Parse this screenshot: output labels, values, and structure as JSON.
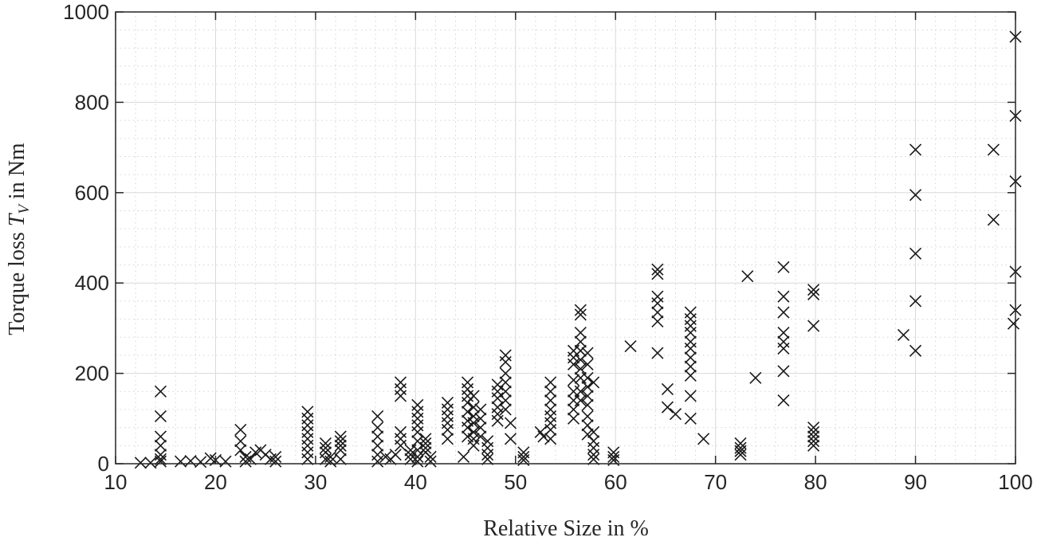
{
  "chart_data": {
    "type": "scatter",
    "title": "",
    "xlabel": "Relative Size in %",
    "ylabel_prefix": "Torque loss ",
    "ylabel_var": "T",
    "ylabel_sub": "V",
    "ylabel_suffix": " in Nm",
    "xlim": [
      10,
      100
    ],
    "ylim": [
      0,
      1000
    ],
    "xticks": [
      10,
      20,
      30,
      40,
      50,
      60,
      70,
      80,
      90,
      100
    ],
    "yticks": [
      0,
      200,
      400,
      600,
      800,
      1000
    ],
    "grid": "major and minor",
    "marker": "x",
    "marker_color": "#1a1a1a",
    "series": [
      {
        "points": [
          [
            12.5,
            2
          ],
          [
            13.5,
            2
          ],
          [
            16.5,
            5
          ],
          [
            17.5,
            6
          ],
          [
            18.5,
            4
          ],
          [
            19.5,
            12
          ],
          [
            20,
            8
          ],
          [
            21,
            5
          ],
          [
            14.5,
            160
          ],
          [
            14.5,
            105
          ],
          [
            14.5,
            60
          ],
          [
            14.5,
            40
          ],
          [
            14.5,
            20
          ],
          [
            14.5,
            10
          ],
          [
            14.5,
            5
          ],
          [
            22.5,
            75
          ],
          [
            22.5,
            50
          ],
          [
            22.5,
            30
          ],
          [
            23,
            15
          ],
          [
            23,
            5
          ],
          [
            23.5,
            10
          ],
          [
            24,
            25
          ],
          [
            24.5,
            30
          ],
          [
            25,
            20
          ],
          [
            25.5,
            10
          ],
          [
            26,
            15
          ],
          [
            26,
            5
          ],
          [
            29.2,
            115
          ],
          [
            29.2,
            100
          ],
          [
            29.2,
            85
          ],
          [
            29.2,
            70
          ],
          [
            29.2,
            55
          ],
          [
            29.2,
            40
          ],
          [
            29.2,
            25
          ],
          [
            29.2,
            10
          ],
          [
            31,
            10
          ],
          [
            31,
            25
          ],
          [
            31,
            35
          ],
          [
            31,
            45
          ],
          [
            31.5,
            15
          ],
          [
            31.5,
            5
          ],
          [
            32.5,
            60
          ],
          [
            32.5,
            50
          ],
          [
            32.5,
            40
          ],
          [
            32.5,
            30
          ],
          [
            32.5,
            10
          ],
          [
            36.2,
            105
          ],
          [
            36.2,
            80
          ],
          [
            36.2,
            60
          ],
          [
            36.2,
            40
          ],
          [
            36.2,
            20
          ],
          [
            36.2,
            5
          ],
          [
            37,
            15
          ],
          [
            37.5,
            10
          ],
          [
            38,
            20
          ],
          [
            38.5,
            180
          ],
          [
            38.5,
            165
          ],
          [
            38.5,
            150
          ],
          [
            38.5,
            70
          ],
          [
            38.5,
            55
          ],
          [
            38.5,
            40
          ],
          [
            39.5,
            30
          ],
          [
            39.5,
            20
          ],
          [
            39.5,
            10
          ],
          [
            40.2,
            130
          ],
          [
            40.2,
            115
          ],
          [
            40.2,
            100
          ],
          [
            40.2,
            85
          ],
          [
            40.2,
            70
          ],
          [
            40.2,
            50
          ],
          [
            40.2,
            30
          ],
          [
            40.2,
            15
          ],
          [
            40.2,
            5
          ],
          [
            41,
            55
          ],
          [
            41,
            45
          ],
          [
            41,
            35
          ],
          [
            41,
            25
          ],
          [
            41.5,
            15
          ],
          [
            41.5,
            5
          ],
          [
            43.2,
            135
          ],
          [
            43.2,
            120
          ],
          [
            43.2,
            105
          ],
          [
            43.2,
            90
          ],
          [
            43.2,
            75
          ],
          [
            43.2,
            55
          ],
          [
            44.8,
            15
          ],
          [
            45.2,
            180
          ],
          [
            45.2,
            165
          ],
          [
            45.2,
            150
          ],
          [
            45.2,
            135
          ],
          [
            45.2,
            115
          ],
          [
            45.2,
            95
          ],
          [
            45.2,
            80
          ],
          [
            45.2,
            60
          ],
          [
            45.8,
            150
          ],
          [
            45.8,
            125
          ],
          [
            45.8,
            105
          ],
          [
            45.8,
            90
          ],
          [
            45.8,
            70
          ],
          [
            45.8,
            55
          ],
          [
            45.8,
            40
          ],
          [
            46.5,
            120
          ],
          [
            46.5,
            100
          ],
          [
            46.5,
            80
          ],
          [
            46.5,
            60
          ],
          [
            47.2,
            50
          ],
          [
            47.2,
            35
          ],
          [
            47.2,
            20
          ],
          [
            47.2,
            10
          ],
          [
            48.2,
            175
          ],
          [
            48.2,
            160
          ],
          [
            48.2,
            145
          ],
          [
            48.2,
            125
          ],
          [
            48.2,
            110
          ],
          [
            48.2,
            95
          ],
          [
            49,
            240
          ],
          [
            49,
            225
          ],
          [
            49,
            200
          ],
          [
            49,
            180
          ],
          [
            49,
            160
          ],
          [
            49,
            140
          ],
          [
            49,
            120
          ],
          [
            49.5,
            90
          ],
          [
            49.5,
            55
          ],
          [
            50.8,
            25
          ],
          [
            50.8,
            15
          ],
          [
            50.8,
            8
          ],
          [
            52.5,
            70
          ],
          [
            52.8,
            60
          ],
          [
            53.5,
            180
          ],
          [
            53.5,
            160
          ],
          [
            53.5,
            140
          ],
          [
            53.5,
            120
          ],
          [
            53.5,
            105
          ],
          [
            53.5,
            90
          ],
          [
            53.5,
            75
          ],
          [
            53.5,
            55
          ],
          [
            55.8,
            250
          ],
          [
            55.8,
            235
          ],
          [
            55.8,
            220
          ],
          [
            55.8,
            185
          ],
          [
            55.8,
            160
          ],
          [
            55.8,
            140
          ],
          [
            55.8,
            120
          ],
          [
            55.8,
            100
          ],
          [
            56.5,
            340
          ],
          [
            56.5,
            330
          ],
          [
            56.5,
            290
          ],
          [
            56.5,
            270
          ],
          [
            56.5,
            250
          ],
          [
            56.5,
            230
          ],
          [
            56.5,
            210
          ],
          [
            56.5,
            190
          ],
          [
            56.5,
            160
          ],
          [
            56.5,
            140
          ],
          [
            57.2,
            245
          ],
          [
            57.2,
            220
          ],
          [
            57.2,
            190
          ],
          [
            57.2,
            170
          ],
          [
            57.2,
            150
          ],
          [
            57.2,
            130
          ],
          [
            57.2,
            105
          ],
          [
            57.2,
            85
          ],
          [
            57.2,
            65
          ],
          [
            57.8,
            180
          ],
          [
            57.8,
            70
          ],
          [
            57.8,
            50
          ],
          [
            57.8,
            35
          ],
          [
            57.8,
            20
          ],
          [
            57.8,
            10
          ],
          [
            59.8,
            25
          ],
          [
            59.8,
            15
          ],
          [
            59.8,
            8
          ],
          [
            61.5,
            260
          ],
          [
            64.2,
            430
          ],
          [
            64.2,
            420
          ],
          [
            64.2,
            370
          ],
          [
            64.2,
            355
          ],
          [
            64.2,
            335
          ],
          [
            64.2,
            315
          ],
          [
            64.2,
            245
          ],
          [
            65.2,
            165
          ],
          [
            65.2,
            125
          ],
          [
            66,
            110
          ],
          [
            67.5,
            335
          ],
          [
            67.5,
            320
          ],
          [
            67.5,
            305
          ],
          [
            67.5,
            290
          ],
          [
            67.5,
            270
          ],
          [
            67.5,
            255
          ],
          [
            67.5,
            235
          ],
          [
            67.5,
            215
          ],
          [
            67.5,
            195
          ],
          [
            67.5,
            150
          ],
          [
            67.5,
            100
          ],
          [
            68.8,
            55
          ],
          [
            72.5,
            45
          ],
          [
            72.5,
            35
          ],
          [
            72.5,
            28
          ],
          [
            72.5,
            20
          ],
          [
            73.2,
            415
          ],
          [
            74,
            190
          ],
          [
            76.8,
            435
          ],
          [
            76.8,
            370
          ],
          [
            76.8,
            335
          ],
          [
            76.8,
            290
          ],
          [
            76.8,
            270
          ],
          [
            76.8,
            255
          ],
          [
            76.8,
            205
          ],
          [
            76.8,
            140
          ],
          [
            79.8,
            385
          ],
          [
            79.8,
            375
          ],
          [
            79.8,
            305
          ],
          [
            79.8,
            80
          ],
          [
            79.8,
            70
          ],
          [
            79.8,
            60
          ],
          [
            79.8,
            50
          ],
          [
            79.8,
            40
          ],
          [
            88.8,
            285
          ],
          [
            90,
            695
          ],
          [
            90,
            595
          ],
          [
            90,
            465
          ],
          [
            90,
            360
          ],
          [
            90,
            250
          ],
          [
            97.8,
            695
          ],
          [
            97.8,
            540
          ],
          [
            99.8,
            310
          ],
          [
            100,
            945
          ],
          [
            100,
            770
          ],
          [
            100,
            625
          ],
          [
            100,
            425
          ],
          [
            100,
            340
          ]
        ]
      }
    ]
  }
}
